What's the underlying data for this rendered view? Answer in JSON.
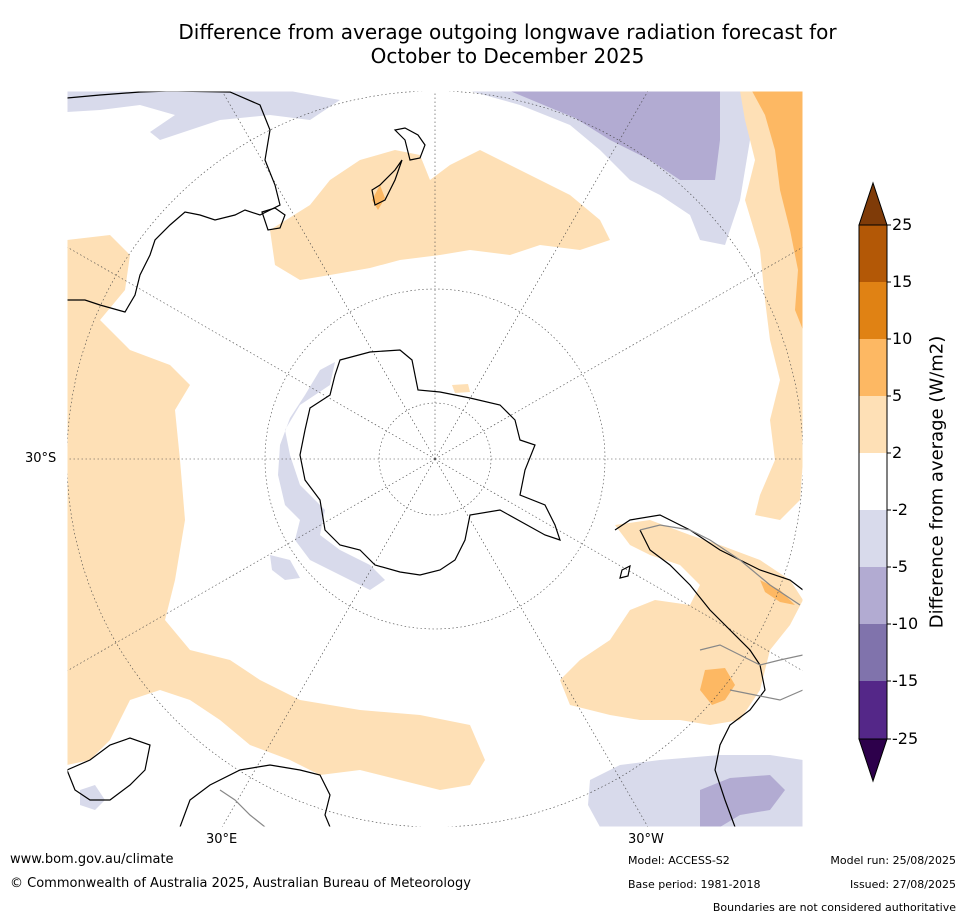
{
  "title": {
    "line1": "Difference from average outgoing longwave radiation forecast for",
    "line2": "October to December 2025"
  },
  "map": {
    "projection": "south polar stereographic",
    "labels": {
      "lat30s": "30°S",
      "lon30e": "30°E",
      "lon30w": "30°W"
    }
  },
  "colorbar": {
    "title": "Difference from average (W/m2)",
    "ticks": [
      "25",
      "15",
      "10",
      "5",
      "2",
      "-2",
      "-5",
      "-10",
      "-15",
      "-25"
    ],
    "colors": {
      "over": "#7f3b08",
      "b15_25": "#b35806",
      "b10_15": "#e08214",
      "b5_10": "#fdb863",
      "b2_5": "#fee0b6",
      "neutral": "#ffffff",
      "bm5_m2": "#d8daeb",
      "bm10_m5": "#b2abd2",
      "bm15_m10": "#8073ac",
      "bm25_m15": "#542788",
      "under": "#2d004b"
    }
  },
  "footer": {
    "url": "www.bom.gov.au/climate",
    "copyright": "© Commonwealth of Australia 2025, Australian Bureau of Meteorology",
    "model": "Model: ACCESS-S2",
    "base_period": "Base period: 1981-2018",
    "model_run": "Model run: 25/08/2025",
    "issued": "Issued: 27/08/2025",
    "disclaimer": "Boundaries are not considered authoritative"
  }
}
